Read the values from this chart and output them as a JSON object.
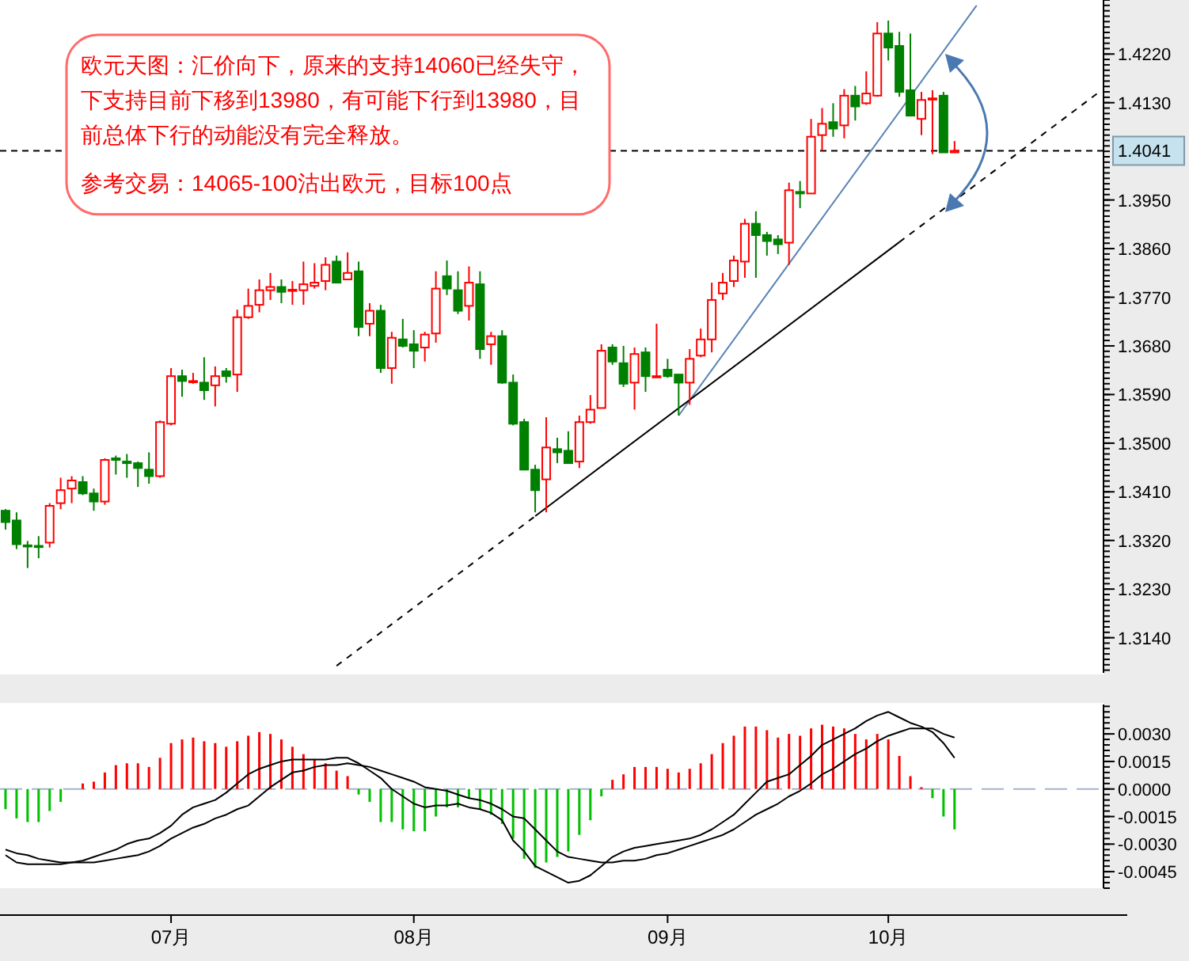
{
  "chart_data": [
    {
      "type": "candlestick",
      "categories": [
        null,
        null,
        null,
        null,
        null,
        null,
        null,
        null,
        null,
        null,
        null,
        null,
        null,
        null,
        null,
        null,
        null,
        null,
        null,
        null,
        null,
        null,
        null,
        null,
        null,
        null,
        null,
        null,
        null,
        null,
        null,
        null,
        null,
        null,
        null,
        null,
        null,
        null,
        null,
        null,
        null,
        null,
        null,
        null,
        null,
        null,
        null,
        null,
        null,
        null,
        null,
        null,
        null,
        null,
        null,
        null,
        null,
        null,
        null,
        null,
        null,
        null,
        null,
        null,
        null,
        null,
        null,
        null,
        null,
        null,
        null,
        null,
        null,
        null,
        null,
        null,
        null,
        null,
        null,
        null,
        null,
        null,
        null,
        null,
        null,
        null,
        null,
        null,
        null,
        null,
        null,
        null,
        null,
        null,
        null,
        null,
        null,
        null,
        null,
        null
      ],
      "ohlc": [
        [
          1.3375,
          1.3378,
          1.334,
          1.3354
        ],
        [
          1.3357,
          1.3372,
          1.3304,
          1.3313
        ],
        [
          1.3311,
          1.3319,
          1.3269,
          1.331
        ],
        [
          1.331,
          1.3328,
          1.3287,
          1.3309
        ],
        [
          1.3316,
          1.3389,
          1.3307,
          1.3384
        ],
        [
          1.3389,
          1.3436,
          1.3378,
          1.3413
        ],
        [
          1.3416,
          1.3439,
          1.3389,
          1.3431
        ],
        [
          1.3428,
          1.3439,
          1.3404,
          1.3407
        ],
        [
          1.3407,
          1.3416,
          1.3375,
          1.3392
        ],
        [
          1.3392,
          1.3472,
          1.3386,
          1.3469
        ],
        [
          1.3472,
          1.3477,
          1.3442,
          1.3469
        ],
        [
          1.3466,
          1.348,
          1.3436,
          1.3463
        ],
        [
          1.3463,
          1.3466,
          1.3419,
          1.3454
        ],
        [
          1.3451,
          1.3483,
          1.3425,
          1.3439
        ],
        [
          1.3439,
          1.3542,
          1.3436,
          1.3539
        ],
        [
          1.3536,
          1.3639,
          1.3533,
          1.3624
        ],
        [
          1.3624,
          1.3636,
          1.3586,
          1.3615
        ],
        [
          1.3614,
          1.363,
          1.361,
          1.3615
        ],
        [
          1.3612,
          1.3659,
          1.358,
          1.3598
        ],
        [
          1.3607,
          1.3642,
          1.3568,
          1.3624
        ],
        [
          1.3633,
          1.3639,
          1.3612,
          1.3624
        ],
        [
          1.3627,
          1.3747,
          1.3595,
          1.3733
        ],
        [
          1.3733,
          1.3786,
          1.373,
          1.3754
        ],
        [
          1.3756,
          1.3803,
          1.3742,
          1.3783
        ],
        [
          1.3783,
          1.3815,
          1.3765,
          1.3789
        ],
        [
          1.3789,
          1.3803,
          1.3759,
          1.378
        ],
        [
          1.3782,
          1.38,
          1.3756,
          1.3784
        ],
        [
          1.3783,
          1.3836,
          1.3756,
          1.3794
        ],
        [
          1.3791,
          1.3833,
          1.3786,
          1.3797
        ],
        [
          1.38,
          1.3844,
          1.3783,
          1.383
        ],
        [
          1.3836,
          1.3847,
          1.3797,
          1.3797
        ],
        [
          1.3803,
          1.3853,
          1.3803,
          1.3815
        ],
        [
          1.3818,
          1.3836,
          1.3698,
          1.3715
        ],
        [
          1.3721,
          1.3759,
          1.3698,
          1.3745
        ],
        [
          1.3745,
          1.3756,
          1.363,
          1.3639
        ],
        [
          1.3639,
          1.3706,
          1.361,
          1.3695
        ],
        [
          1.3692,
          1.373,
          1.3677,
          1.368
        ],
        [
          1.3683,
          1.3709,
          1.3639,
          1.3671
        ],
        [
          1.3677,
          1.3706,
          1.3651,
          1.3701
        ],
        [
          1.3703,
          1.3818,
          1.3686,
          1.3786
        ],
        [
          1.3809,
          1.3838,
          1.3774,
          1.3786
        ],
        [
          1.3783,
          1.3818,
          1.3739,
          1.3745
        ],
        [
          1.3754,
          1.3827,
          1.3727,
          1.3797
        ],
        [
          1.3794,
          1.3818,
          1.3656,
          1.3674
        ],
        [
          1.3683,
          1.3706,
          1.3645,
          1.3698
        ],
        [
          1.3698,
          1.3709,
          1.361,
          1.3612
        ],
        [
          1.3612,
          1.3627,
          1.3533,
          1.3536
        ],
        [
          1.3539,
          1.3545,
          1.3451,
          1.3451
        ],
        [
          1.3451,
          1.346,
          1.3372,
          1.3413
        ],
        [
          1.3433,
          1.3548,
          1.3372,
          1.3492
        ],
        [
          1.3489,
          1.351,
          1.3463,
          1.3483
        ],
        [
          1.3486,
          1.3522,
          1.3463,
          1.3463
        ],
        [
          1.3466,
          1.3551,
          1.3454,
          1.3539
        ],
        [
          1.3539,
          1.3589,
          1.3536,
          1.3562
        ],
        [
          1.3565,
          1.3683,
          1.3565,
          1.3671
        ],
        [
          1.3677,
          1.3683,
          1.3645,
          1.3651
        ],
        [
          1.3648,
          1.368,
          1.3604,
          1.361
        ],
        [
          1.3612,
          1.3677,
          1.3562,
          1.3665
        ],
        [
          1.3668,
          1.3677,
          1.3595,
          1.3624
        ],
        [
          1.3623,
          1.3721,
          1.3621,
          1.3624
        ],
        [
          1.3636,
          1.3656,
          1.3621,
          1.3624
        ],
        [
          1.3627,
          1.3627,
          1.3551,
          1.3612
        ],
        [
          1.3612,
          1.3674,
          1.3571,
          1.3656
        ],
        [
          1.3662,
          1.3712,
          1.3659,
          1.3692
        ],
        [
          1.3692,
          1.3797,
          1.3668,
          1.3765
        ],
        [
          1.3777,
          1.3815,
          1.3765,
          1.3797
        ],
        [
          1.38,
          1.3847,
          1.3789,
          1.3838
        ],
        [
          1.3836,
          1.3915,
          1.3806,
          1.3906
        ],
        [
          1.3906,
          1.3929,
          1.3806,
          1.3885
        ],
        [
          1.3885,
          1.3891,
          1.3847,
          1.3874
        ],
        [
          1.3877,
          1.3885,
          1.385,
          1.3868
        ],
        [
          1.3871,
          1.3982,
          1.383,
          1.3968
        ],
        [
          1.3965,
          1.3985,
          1.3935,
          1.3962
        ],
        [
          1.3962,
          1.41,
          1.3962,
          1.4067
        ],
        [
          1.407,
          1.412,
          1.4041,
          1.4091
        ],
        [
          1.4094,
          1.4129,
          1.4067,
          1.4082
        ],
        [
          1.4088,
          1.4155,
          1.4064,
          1.4143
        ],
        [
          1.4143,
          1.4161,
          1.4097,
          1.4123
        ],
        [
          1.4129,
          1.4188,
          1.4126,
          1.4147
        ],
        [
          1.4143,
          1.4279,
          1.4141,
          1.4258
        ],
        [
          1.4258,
          1.4282,
          1.4208,
          1.4232
        ],
        [
          1.4235,
          1.4261,
          1.4141,
          1.415
        ],
        [
          1.4153,
          1.4258,
          1.4106,
          1.4106
        ],
        [
          1.41,
          1.415,
          1.407,
          1.4135
        ],
        [
          1.4137,
          1.4153,
          1.4035,
          1.4138
        ],
        [
          1.4143,
          1.415,
          1.4038,
          1.4038
        ],
        [
          1.4038,
          1.4059,
          1.4038,
          1.4041
        ],
        null,
        null,
        null,
        null,
        null,
        null,
        null,
        null,
        null,
        null,
        null,
        null,
        null
      ],
      "colors": [
        "#008000",
        "#008000",
        "#008000",
        "#008000",
        "#ff0000",
        "#ff0000",
        "#ff0000",
        "#008000",
        "#008000",
        "#ff0000",
        "#008000",
        "#008000",
        "#008000",
        "#008000",
        "#ff0000",
        "#ff0000",
        "#008000",
        "#ff0000",
        "#008000",
        "#ff0000",
        "#008000",
        "#ff0000",
        "#ff0000",
        "#ff0000",
        "#ff0000",
        "#008000",
        "#ff0000",
        "#ff0000",
        "#ff0000",
        "#ff0000",
        "#008000",
        "#ff0000",
        "#008000",
        "#ff0000",
        "#008000",
        "#ff0000",
        "#008000",
        "#008000",
        "#ff0000",
        "#ff0000",
        "#008000",
        "#008000",
        "#ff0000",
        "#008000",
        "#ff0000",
        "#008000",
        "#008000",
        "#008000",
        "#008000",
        "#ff0000",
        "#008000",
        "#008000",
        "#ff0000",
        "#ff0000",
        "#ff0000",
        "#008000",
        "#008000",
        "#ff0000",
        "#008000",
        "#ff0000",
        "#008000",
        "#008000",
        "#ff0000",
        "#ff0000",
        "#ff0000",
        "#ff0000",
        "#ff0000",
        "#ff0000",
        "#008000",
        "#008000",
        "#008000",
        "#ff0000",
        "#008000",
        "#ff0000",
        "#ff0000",
        "#008000",
        "#ff0000",
        "#008000",
        "#ff0000",
        "#ff0000",
        "#008000",
        "#008000",
        "#008000",
        "#ff0000",
        "#ff0000",
        "#008000",
        "#ff0000",
        null,
        null,
        null,
        null,
        null,
        null,
        null,
        null,
        null,
        null,
        null,
        null,
        null
      ],
      "series": [
        {
          "type": "line",
          "color": "#5a84b5",
          "line_style": "solid",
          "values": [
            null,
            null,
            null,
            null,
            null,
            null,
            null,
            null,
            null,
            null,
            null,
            null,
            null,
            null,
            null,
            null,
            null,
            null,
            null,
            null,
            null,
            null,
            null,
            null,
            null,
            null,
            null,
            null,
            null,
            null,
            null,
            null,
            null,
            null,
            null,
            null,
            null,
            null,
            null,
            null,
            null,
            null,
            null,
            null,
            null,
            null,
            null,
            null,
            null,
            null,
            null,
            null,
            null,
            null,
            null,
            null,
            null,
            null,
            null,
            null,
            null,
            1.3551,
            null,
            null,
            null,
            null,
            null,
            null,
            null,
            null,
            null,
            null,
            null,
            null,
            null,
            null,
            null,
            null,
            null,
            null,
            null,
            null,
            null,
            null,
            null,
            null,
            null,
            null,
            1.431,
            null,
            null,
            null,
            null,
            null,
            null,
            null,
            null,
            null,
            null,
            null
          ]
        },
        {
          "type": "line",
          "color": "#000000",
          "line_style": "dashed",
          "values": [
            null,
            null,
            null,
            null,
            null,
            null,
            null,
            null,
            null,
            null,
            null,
            null,
            null,
            null,
            null,
            null,
            null,
            null,
            null,
            null,
            null,
            null,
            null,
            null,
            null,
            null,
            null,
            null,
            null,
            null,
            1.3088,
            null,
            null,
            null,
            null,
            null,
            null,
            null,
            null,
            null,
            null,
            null,
            null,
            null,
            null,
            null,
            null,
            null,
            1.3365,
            null,
            null,
            null,
            null,
            null,
            null,
            null,
            null,
            null,
            null,
            null,
            null,
            null,
            null,
            null,
            null,
            null,
            null,
            null,
            null,
            null,
            null,
            null,
            null,
            null,
            null,
            null,
            null,
            null,
            null,
            null,
            null,
            null,
            null,
            null,
            null,
            null,
            null,
            null,
            null,
            null,
            null,
            null,
            null,
            null,
            null,
            null,
            null,
            null,
            null,
            null
          ]
        },
        {
          "type": "line",
          "color": "#000000",
          "line_style": "solid",
          "values": [
            null,
            null,
            null,
            null,
            null,
            null,
            null,
            null,
            null,
            null,
            null,
            null,
            null,
            null,
            null,
            null,
            null,
            null,
            null,
            null,
            null,
            null,
            null,
            null,
            null,
            null,
            null,
            null,
            null,
            null,
            null,
            null,
            null,
            null,
            null,
            null,
            null,
            null,
            null,
            null,
            null,
            null,
            null,
            null,
            null,
            null,
            null,
            null,
            1.3365,
            null,
            null,
            null,
            null,
            null,
            null,
            null,
            null,
            null,
            null,
            null,
            null,
            null,
            null,
            null,
            null,
            null,
            null,
            null,
            null,
            null,
            null,
            null,
            null,
            null,
            null,
            null,
            null,
            null,
            null,
            null,
            null,
            1.3872,
            null,
            null,
            null,
            null,
            null,
            null,
            null,
            null,
            null,
            null,
            null,
            null,
            null,
            null,
            null,
            null,
            null,
            null
          ]
        },
        {
          "type": "line",
          "color": "#000000",
          "line_style": "dashed",
          "values": [
            null,
            null,
            null,
            null,
            null,
            null,
            null,
            null,
            null,
            null,
            null,
            null,
            null,
            null,
            null,
            null,
            null,
            null,
            null,
            null,
            null,
            null,
            null,
            null,
            null,
            null,
            null,
            null,
            null,
            null,
            null,
            null,
            null,
            null,
            null,
            null,
            null,
            null,
            null,
            null,
            null,
            null,
            null,
            null,
            null,
            null,
            null,
            null,
            null,
            null,
            null,
            null,
            null,
            null,
            null,
            null,
            null,
            null,
            null,
            null,
            null,
            null,
            null,
            null,
            null,
            null,
            null,
            null,
            null,
            null,
            null,
            null,
            null,
            null,
            null,
            null,
            null,
            null,
            null,
            null,
            null,
            1.3872,
            null,
            null,
            null,
            null,
            null,
            null,
            null,
            null,
            null,
            null,
            null,
            null,
            null,
            null,
            null,
            null,
            null,
            1.4148
          ]
        }
      ],
      "ylim": [
        1.3075,
        1.432
      ],
      "yticks": [
        {
          "value": 1.314,
          "label": "1.3140"
        },
        {
          "value": 1.323,
          "label": "1.3230"
        },
        {
          "value": 1.332,
          "label": "1.3320"
        },
        {
          "value": 1.341,
          "label": "1.3410"
        },
        {
          "value": 1.35,
          "label": "1.3500"
        },
        {
          "value": 1.359,
          "label": "1.3590"
        },
        {
          "value": 1.368,
          "label": "1.3680"
        },
        {
          "value": 1.377,
          "label": "1.3770"
        },
        {
          "value": 1.386,
          "label": "1.3860"
        },
        {
          "value": 1.395,
          "label": "1.3950"
        },
        {
          "value": 1.413,
          "label": "1.4130"
        },
        {
          "value": 1.422,
          "label": "1.4220"
        }
      ],
      "tick_labels": "y",
      "ref_lines": [
        {
          "axis": "y",
          "value": 1.4041,
          "label": "1.4041",
          "color": "#000000",
          "line_style": "dashed"
        }
      ],
      "annotations": [
        "欧元天图：汇价向下，原来的支持14060已经失守，下支持目前下移到13980，有可能下行到13980，目前总体下行的动能没有完全释放。",
        "参考交易：14065-100沽出欧元，目标100点"
      ]
    },
    {
      "type": "bar",
      "categories": [
        null,
        null,
        null,
        null,
        null,
        null,
        null,
        null,
        null,
        null,
        null,
        null,
        null,
        null,
        null,
        "07月",
        null,
        null,
        null,
        null,
        null,
        null,
        null,
        null,
        null,
        null,
        null,
        null,
        null,
        null,
        null,
        null,
        null,
        null,
        null,
        null,
        null,
        "08月",
        null,
        null,
        null,
        null,
        null,
        null,
        null,
        null,
        null,
        null,
        null,
        null,
        null,
        null,
        null,
        null,
        null,
        null,
        null,
        null,
        null,
        null,
        "09月",
        null,
        null,
        null,
        null,
        null,
        null,
        null,
        null,
        null,
        null,
        null,
        null,
        null,
        null,
        null,
        null,
        null,
        null,
        null,
        "10月",
        null,
        null,
        null,
        null,
        null,
        null,
        null,
        null,
        null,
        null,
        null,
        null,
        null,
        null,
        null,
        null,
        null,
        null,
        null
      ],
      "series": [
        {
          "type": "bar",
          "values": [
            -0.0011,
            -0.0016,
            -0.0018,
            -0.0018,
            -0.0012,
            -0.0007,
            0,
            0.0003,
            0.0004,
            0.0009,
            0.0013,
            0.0014,
            0.0014,
            0.0012,
            0.0017,
            0.0025,
            0.0027,
            0.0028,
            0.0026,
            0.0025,
            0.0023,
            0.0026,
            0.0029,
            0.0031,
            0.003,
            0.0027,
            0.0023,
            0.0019,
            0.0016,
            0.0014,
            0.001,
            0.0007,
            -0.0003,
            -0.0007,
            -0.0018,
            -0.0018,
            -0.0022,
            -0.0023,
            -0.0023,
            -0.0015,
            -0.001,
            -0.001,
            -0.0005,
            -0.0011,
            -0.0014,
            -0.0019,
            -0.0027,
            -0.0038,
            -0.0043,
            -0.004,
            -0.0037,
            -0.0034,
            -0.0025,
            -0.0017,
            -0.0004,
            0.0005,
            0.0008,
            0.0012,
            0.0012,
            0.0012,
            0.0011,
            0.0009,
            0.0011,
            0.0014,
            0.0019,
            0.0025,
            0.0029,
            0.0034,
            0.0034,
            0.0032,
            0.0028,
            0.003,
            0.0029,
            0.0033,
            0.0035,
            0.0034,
            0.0033,
            0.003,
            0.0027,
            0.003,
            0.0027,
            0.0018,
            0.0007,
            0.0001,
            -0.0005,
            -0.0015,
            -0.0022,
            null,
            null,
            null,
            null,
            null,
            null,
            null,
            null,
            null,
            null,
            null,
            null,
            null
          ],
          "colors": [
            "#00c000",
            "#00c000",
            "#00c000",
            "#00c000",
            "#00c000",
            "#00c000",
            "#00c000",
            "#ff0000",
            "#ff0000",
            "#ff0000",
            "#ff0000",
            "#ff0000",
            "#ff0000",
            "#ff0000",
            "#ff0000",
            "#ff0000",
            "#ff0000",
            "#ff0000",
            "#ff0000",
            "#ff0000",
            "#ff0000",
            "#ff0000",
            "#ff0000",
            "#ff0000",
            "#ff0000",
            "#ff0000",
            "#ff0000",
            "#ff0000",
            "#ff0000",
            "#ff0000",
            "#ff0000",
            "#ff0000",
            "#00c000",
            "#00c000",
            "#00c000",
            "#00c000",
            "#00c000",
            "#00c000",
            "#00c000",
            "#00c000",
            "#00c000",
            "#00c000",
            "#00c000",
            "#00c000",
            "#00c000",
            "#00c000",
            "#00c000",
            "#00c000",
            "#00c000",
            "#00c000",
            "#00c000",
            "#00c000",
            "#00c000",
            "#00c000",
            "#00c000",
            "#ff0000",
            "#ff0000",
            "#ff0000",
            "#ff0000",
            "#ff0000",
            "#ff0000",
            "#ff0000",
            "#ff0000",
            "#ff0000",
            "#ff0000",
            "#ff0000",
            "#ff0000",
            "#ff0000",
            "#ff0000",
            "#ff0000",
            "#ff0000",
            "#ff0000",
            "#ff0000",
            "#ff0000",
            "#ff0000",
            "#ff0000",
            "#ff0000",
            "#ff0000",
            "#ff0000",
            "#ff0000",
            "#ff0000",
            "#ff0000",
            "#ff0000",
            "#ff0000",
            "#00c000",
            "#00c000",
            "#00c000",
            null,
            null,
            null,
            null,
            null,
            null,
            null,
            null,
            null,
            null,
            null,
            null,
            null
          ]
        },
        {
          "type": "line",
          "color": "#000000",
          "values": [
            -0.0033,
            -0.0035,
            -0.0036,
            -0.0038,
            -0.0039,
            -0.004,
            -0.004,
            -0.0039,
            -0.0037,
            -0.0035,
            -0.0033,
            -0.003,
            -0.0028,
            -0.0027,
            -0.0024,
            -0.002,
            -0.0014,
            -0.001,
            -0.0008,
            -0.0006,
            -0.0002,
            0.0003,
            0.0008,
            0.0011,
            0.0013,
            0.0015,
            0.0016,
            0.0016,
            0.0016,
            0.0016,
            0.0017,
            0.0017,
            0.0014,
            0.001,
            0.0006,
            0.0,
            -0.0004,
            -0.0008,
            -0.001,
            -0.0009,
            -0.0009,
            -0.0008,
            -0.001,
            -0.0011,
            -0.0013,
            -0.0017,
            -0.0028,
            -0.0034,
            -0.0042,
            -0.0045,
            -0.0048,
            -0.0051,
            -0.005,
            -0.0047,
            -0.0042,
            -0.0037,
            -0.0034,
            -0.0032,
            -0.0031,
            -0.003,
            -0.0029,
            -0.0028,
            -0.0027,
            -0.0025,
            -0.0022,
            -0.0018,
            -0.0014,
            -0.0008,
            -0.0002,
            0.0004,
            0.0006,
            0.0008,
            0.0013,
            0.0018,
            0.0024,
            0.0027,
            0.003,
            0.0033,
            0.0037,
            0.004,
            0.0042,
            0.0039,
            0.0036,
            0.0034,
            0.0031,
            0.0025,
            0.0017,
            null,
            null,
            null,
            null,
            null,
            null,
            null,
            null,
            null,
            null,
            null,
            null,
            null
          ]
        },
        {
          "type": "line",
          "color": "#000000",
          "values": [
            -0.0036,
            -0.004,
            -0.0041,
            -0.0041,
            -0.0041,
            -0.0041,
            -0.004,
            -0.004,
            -0.004,
            -0.0039,
            -0.0038,
            -0.0037,
            -0.0036,
            -0.0034,
            -0.0031,
            -0.0027,
            -0.0024,
            -0.0021,
            -0.0019,
            -0.0016,
            -0.0014,
            -0.0011,
            -0.0009,
            -0.0004,
            0.0001,
            0.0005,
            0.0009,
            0.001,
            0.0012,
            0.0013,
            0.0013,
            0.0014,
            0.0013,
            0.0012,
            0.001,
            0.0008,
            0.0006,
            0.0004,
            0.0001,
            0.0,
            -0.0001,
            -0.0003,
            -0.0005,
            -0.0006,
            -0.0008,
            -0.0011,
            -0.0015,
            -0.0016,
            -0.0022,
            -0.0028,
            -0.0034,
            -0.0037,
            -0.0038,
            -0.0039,
            -0.004,
            -0.004,
            -0.0039,
            -0.0039,
            -0.0038,
            -0.0036,
            -0.0035,
            -0.0033,
            -0.0031,
            -0.0029,
            -0.0027,
            -0.0025,
            -0.0022,
            -0.0018,
            -0.0014,
            -0.0011,
            -0.0008,
            -0.0004,
            -0.0001,
            0.0003,
            0.0008,
            0.0011,
            0.0015,
            0.0019,
            0.0022,
            0.0026,
            0.0029,
            0.0031,
            0.0033,
            0.0033,
            0.0033,
            0.003,
            0.0028,
            null,
            null,
            null,
            null,
            null,
            null,
            null,
            null,
            null,
            null,
            null,
            null,
            null
          ]
        }
      ],
      "ylim": [
        -0.0054,
        0.0046
      ],
      "yticks": [
        {
          "value": 0.003,
          "label": "0.0030"
        },
        {
          "value": 0.0015,
          "label": "0.0015"
        },
        {
          "value": 0,
          "label": "0.0000"
        },
        {
          "value": -0.0015,
          "label": "-0.0015"
        },
        {
          "value": -0.003,
          "label": "-0.0030"
        },
        {
          "value": -0.0045,
          "label": "-0.0045"
        }
      ],
      "ref_lines": [
        {
          "axis": "y",
          "value": 0,
          "color": "#a3b5c9",
          "line_style": "dashed"
        }
      ]
    }
  ]
}
